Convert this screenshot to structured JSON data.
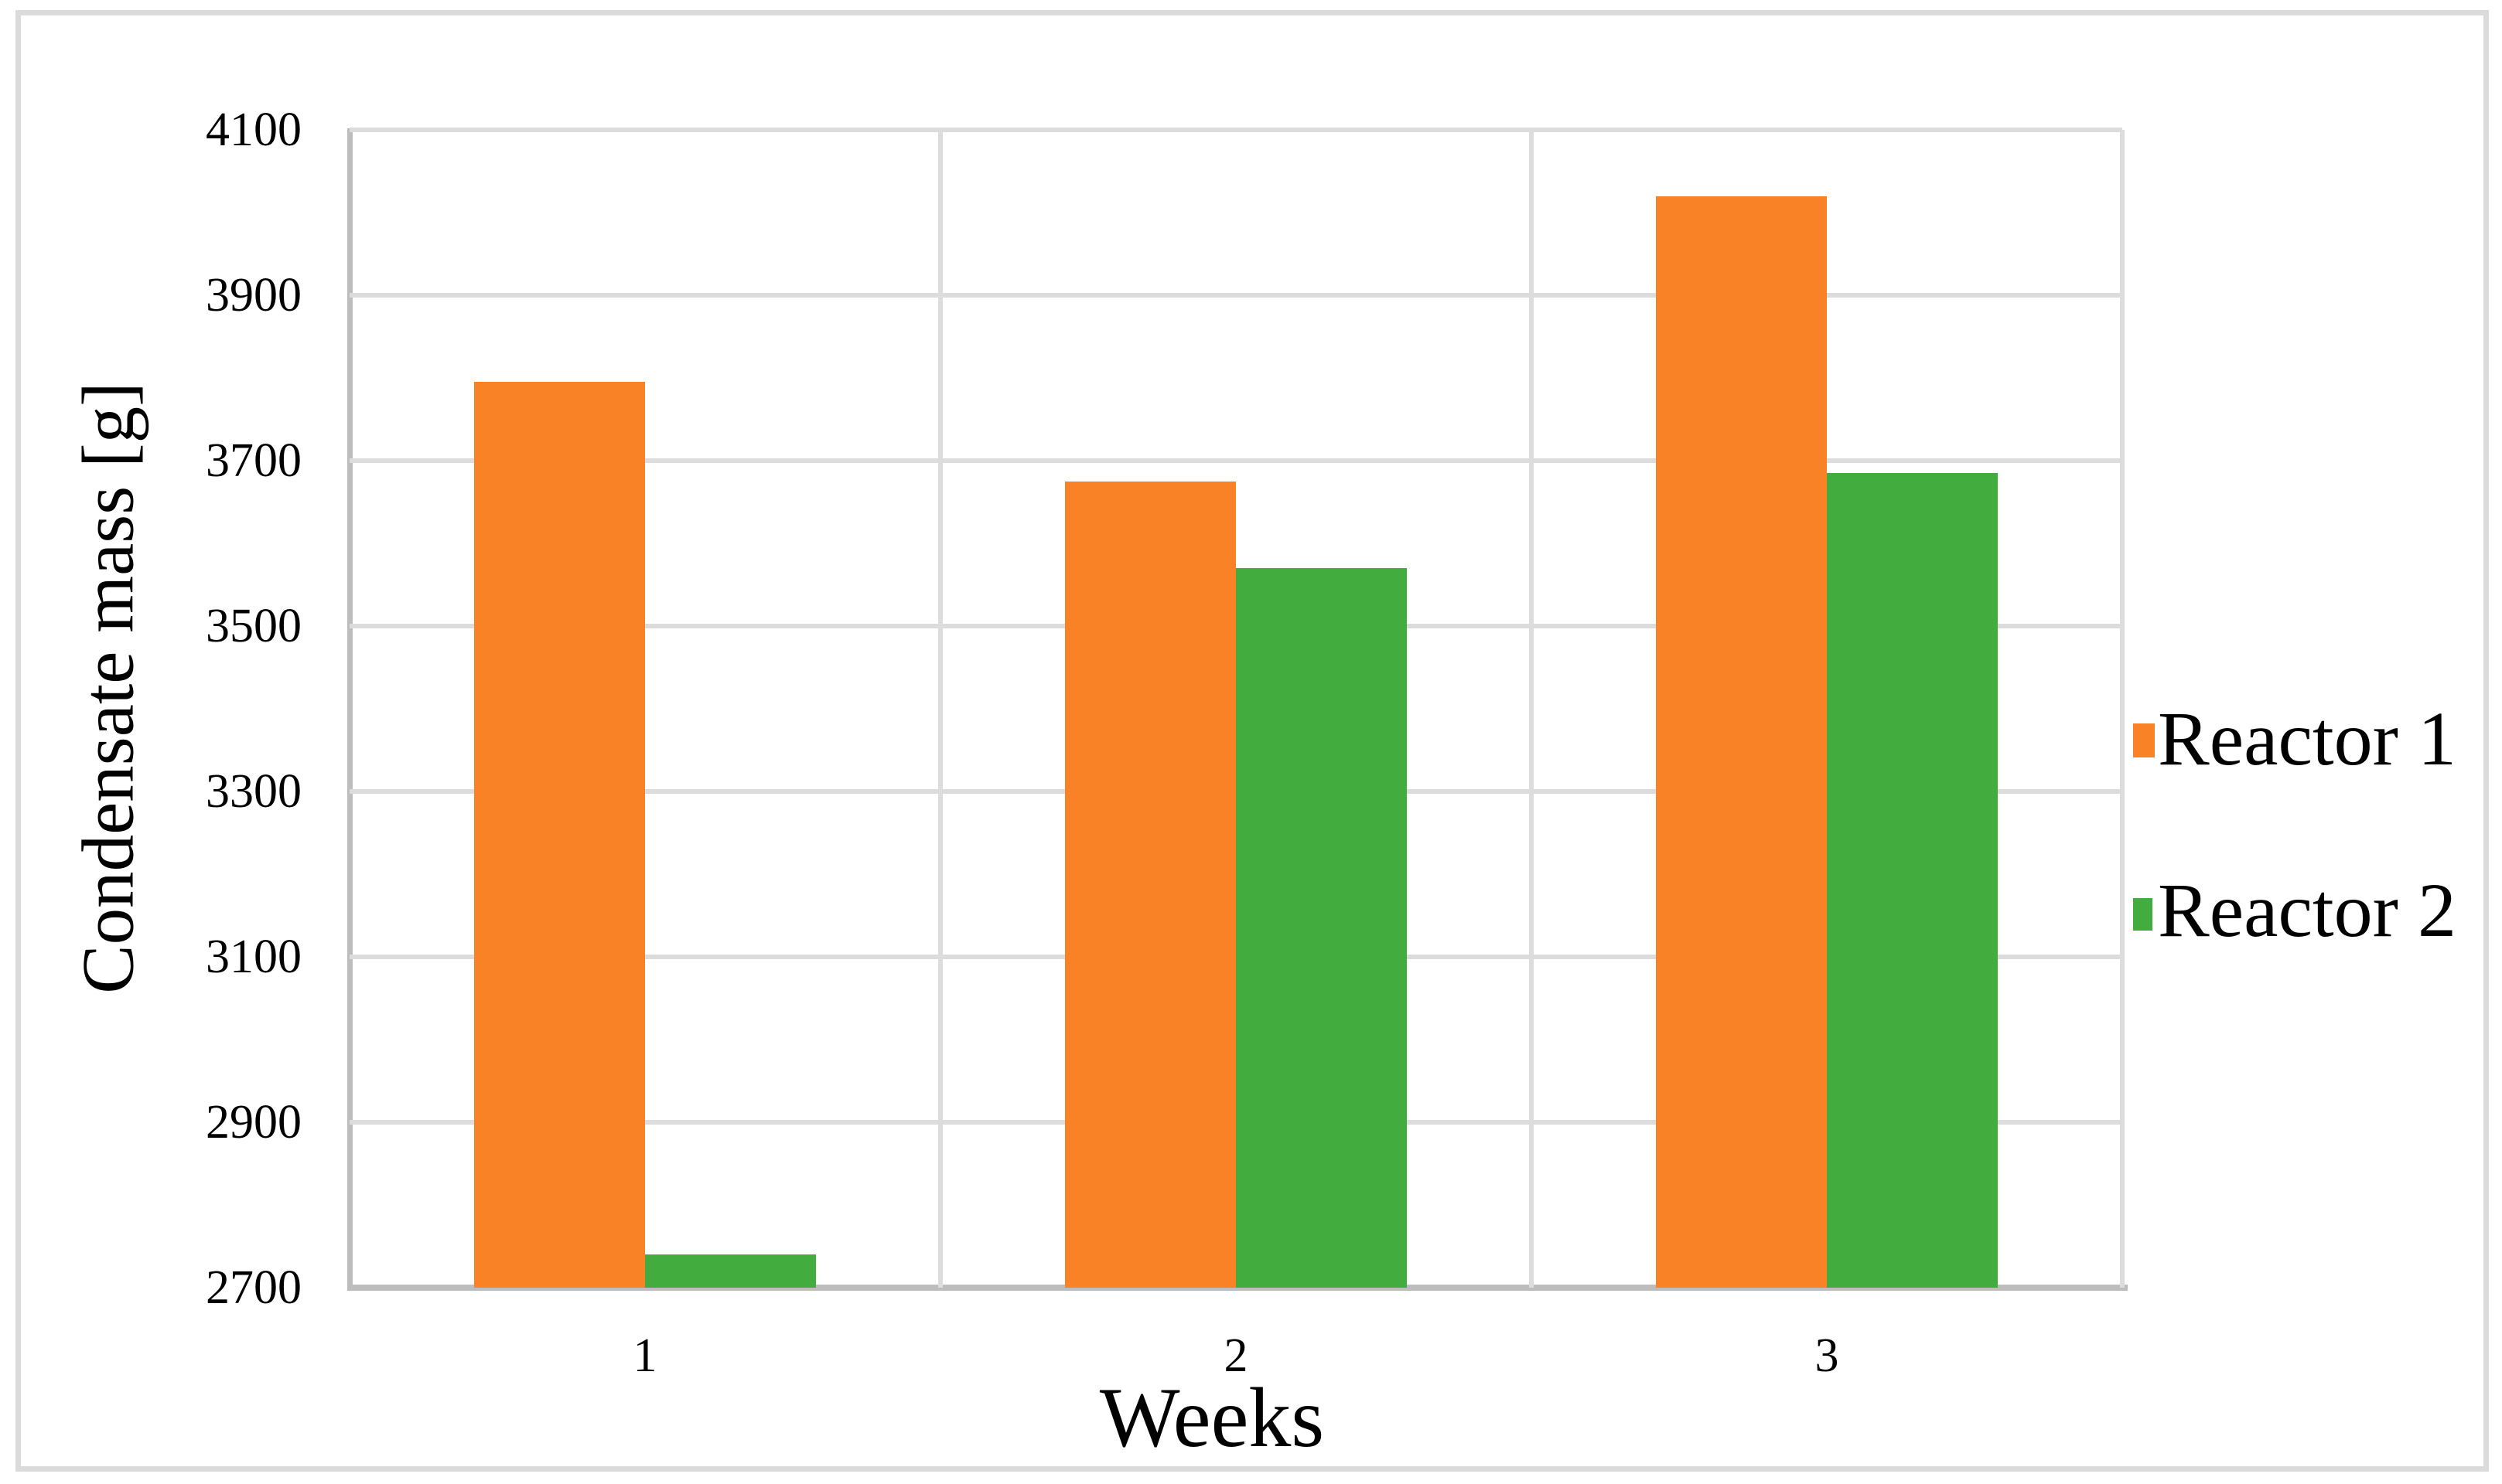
{
  "chart_data": {
    "type": "bar",
    "categories": [
      "1",
      "2",
      "3"
    ],
    "series": [
      {
        "name": "Reactor 1",
        "color": "#fa8226",
        "values": [
          3795,
          3675,
          4020
        ]
      },
      {
        "name": "Reactor 2",
        "color": "#43ac3f",
        "values": [
          2740,
          3570,
          3685
        ]
      }
    ],
    "xlabel": "Weeks",
    "ylabel": "Condensate mass [g]",
    "ylim": [
      2700,
      4100
    ],
    "ytick_step": 200,
    "yticks": [
      2700,
      2900,
      3100,
      3300,
      3500,
      3700,
      3900,
      4100
    ],
    "grid": true,
    "legend_position": "right",
    "colors": {
      "gridline": "#dcdcdc",
      "axis_line": "#bdbdbd",
      "chart_border": "#dbdbdb",
      "text": "#000000",
      "background": "#ffffff"
    }
  }
}
